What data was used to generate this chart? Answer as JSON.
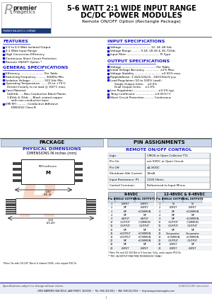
{
  "title_line1": "5-6 WATT 2:1 WIDE INPUT RANGE",
  "title_line2": "DC/DC POWER MODULES",
  "subtitle": "Remote ON/OFF Option (Rectangle Package)",
  "features_title": "FEATURES",
  "features": [
    "5.0 to 6.0 Watt Isolated Output",
    "2:1 Wide Input Range",
    "High Conversion Efficiency",
    "Continuous Short Circuit Protection",
    "Remote ON/OFF Option *"
  ],
  "general_title": "GENERAL SPECIFICATIONS",
  "general_specs": [
    [
      "bullet",
      "Efficiency .......................... Per Table"
    ],
    [
      "bullet",
      "Switching Frequency .......... 300KHz Min."
    ],
    [
      "bullet",
      "Isolation Voltage: .............. 500 Vdc Min."
    ],
    [
      "bullet",
      "Operating Temperature: ..... -25 to +75°C"
    ],
    [
      "indent",
      "Derate linearly to no load @ 100°C max."
    ],
    [
      "bullet",
      "Case Material:"
    ],
    [
      "indent2",
      "5&6Vdc .....Non-Conductive Black Plastic"
    ],
    [
      "indent2",
      "1.8Vdc & 3Vdc ....Black coated copper"
    ],
    [
      "indent3",
      "with non-conductive base"
    ],
    [
      "bullet",
      "EMI RFI ........... Conductive Adhesive"
    ],
    [
      "indent3",
      "EN55022 Class B"
    ]
  ],
  "input_title": "INPUT SPECIFICATIONS",
  "input_specs": [
    "Voltage ................................ 12, 24, 48 Vdc",
    "Voltage Range ......... 9-18, 18-36 & 36-72Vdc",
    "Input Filter ..................................... Pi Type"
  ],
  "output_title": "OUTPUT SPECIFICATIONS",
  "output_specs": [
    [
      "bullet",
      "Voltage ...................................... Per Table"
    ],
    [
      "bullet",
      "Initial Voltage Accuracy ................ ±2% Max."
    ],
    [
      "bullet",
      "Voltage Stability ............................. ±0.05% max."
    ],
    [
      "bullet",
      "Ripple&Noise: 3.3&5/12&15.. 100/150mV p-p"
    ],
    [
      "bullet",
      "Load Regulation (10 to 100% Load):"
    ],
    [
      "indent2",
      "Single Output Units:    ±0.5%"
    ],
    [
      "indent2",
      "Dual Output Units:    ±1.0%"
    ],
    [
      "bullet",
      "Line Regulation ........................... ±0.5% typ."
    ],
    [
      "bullet",
      "Temp Coefficient ..................... ±0.05%/°C"
    ],
    [
      "bullet",
      "Short Circuit Protection .......... Continuous"
    ]
  ],
  "package_label": "PACKAGE",
  "pin_label": "PIN ASSIGNMENTS",
  "phys_dim_title": "PHYSICAL DIMENSIONS",
  "phys_dim_sub": "DIMENSIONS IN inches (mm)",
  "remote_title": "REMOTE ON/OFF CONTROL",
  "remote_rows": [
    [
      "Logic",
      "CMOS or Open Collector TTL"
    ],
    [
      "Pin On",
      "ext 5VDC or Open Circuit"
    ],
    [
      "Pin Off",
      "≤1.8VDC"
    ],
    [
      "Shutdown Idle Current",
      "10mA"
    ],
    [
      "Input Resistance: P1",
      "1100 Ohms"
    ],
    [
      "Control Common",
      "Referenced to Input Minus"
    ]
  ],
  "pin_table_left_header": "9-6VDC",
  "pin_table_right_header": "12-48VDC & 9-48VDC",
  "pin_col_headers": [
    "Pin #",
    "SINGLE OUTPUT",
    "DUAL OUTPUTS"
  ],
  "pin_rows_left": [
    [
      "1",
      "-INPUT",
      "-INPUT"
    ],
    [
      "2",
      "NP",
      "-INPUT"
    ],
    [
      "3",
      "NP",
      "+COMMON"
    ],
    [
      "4",
      "NP",
      "NP"
    ],
    [
      "9",
      "+INPUT",
      "+INPUT"
    ],
    [
      "10",
      "-OUTPUT",
      "-COMMON"
    ],
    [
      "11",
      "-OUTPUT",
      "-OUTPUT"
    ],
    [
      "12",
      "NP",
      "NP"
    ],
    [
      "13",
      "+OUTPUT",
      "+COMMON"
    ],
    [
      "14",
      "+OUTPUT",
      "+COMMON"
    ],
    [
      "22",
      "NP",
      "+COMMON"
    ],
    [
      "23",
      "NP",
      "NP"
    ],
    [
      "24",
      "-INPUT",
      "-INPUT"
    ]
  ],
  "pin_rows_right": [
    [
      "1",
      "NI",
      "NI"
    ],
    [
      "2",
      "-INPUT",
      "-INPUT"
    ],
    [
      "3",
      "NP",
      "+COMMON"
    ],
    [
      "4",
      "NP",
      "NP"
    ],
    [
      "9",
      "NP",
      "+COMMON"
    ],
    [
      "10",
      "-OUTPUT",
      "-COMMON"
    ],
    [
      "11",
      "-OUTPUT",
      "-OUTPUT"
    ],
    [
      "12",
      "NP",
      "NP"
    ],
    [
      "13",
      "Comparator",
      "Comparator"
    ],
    [
      "14",
      "+COMMON",
      "+COMMON"
    ],
    [
      "22",
      "-OUTPUT",
      "-OUTPUT"
    ],
    [
      "23",
      "-INPUT",
      "NP"
    ],
    [
      "24",
      "-INPUT",
      "-INPUT"
    ]
  ],
  "section_color": "#1515cc",
  "watermark_color": "#e86020",
  "footer_text": "Specifications subject to change without notice.",
  "footer_right": "E2AD2412NX datasheet",
  "footer_addr": "26851 BARRENTS SEA CIRCLE, LAKE FOREST, CA 92630  •  TEL: (949) 452-0911  •  FAX: (949) 452-0932  •  http://www.premiermagetics.com",
  "background": "#ffffff"
}
